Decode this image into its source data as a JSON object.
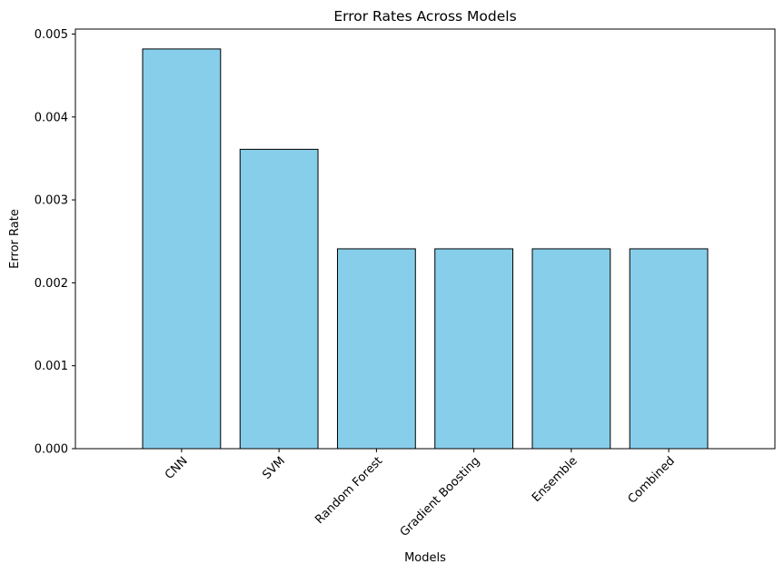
{
  "chart_data": {
    "type": "bar",
    "title": "Error Rates Across Models",
    "xlabel": "Models",
    "ylabel": "Error Rate",
    "categories": [
      "CNN",
      "SVM",
      "Random Forest",
      "Gradient Boosting",
      "Ensemble",
      "Combined"
    ],
    "values": [
      0.00482,
      0.00361,
      0.00241,
      0.00241,
      0.00241,
      0.00241
    ],
    "ylim": [
      0,
      0.00506
    ],
    "yticks": [
      0.0,
      0.001,
      0.002,
      0.003,
      0.004,
      0.005
    ],
    "ytick_labels": [
      "0.000",
      "0.001",
      "0.002",
      "0.003",
      "0.004",
      "0.005"
    ],
    "grid": false,
    "colors": {
      "bar_fill": "#87ceeb",
      "bar_edge": "#000000",
      "axis": "#000000"
    }
  }
}
